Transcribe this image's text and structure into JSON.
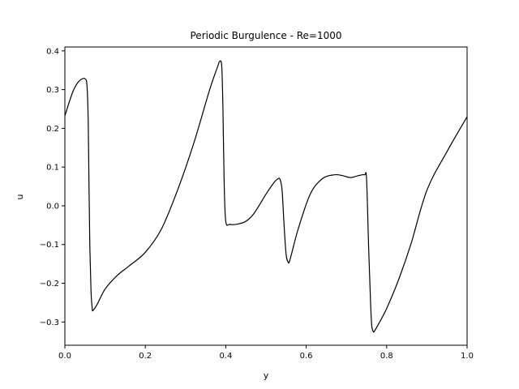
{
  "chart_data": {
    "type": "line",
    "title": "Periodic Burgulence - Re=1000",
    "xlabel": "y",
    "ylabel": "u",
    "xlim": [
      0.0,
      1.0
    ],
    "ylim": [
      -0.36,
      0.41
    ],
    "xticks": [
      0.0,
      0.2,
      0.4,
      0.6,
      0.8,
      1.0
    ],
    "xtick_labels": [
      "0.0",
      "0.2",
      "0.4",
      "0.6",
      "0.8",
      "1.0"
    ],
    "yticks": [
      -0.3,
      -0.2,
      -0.1,
      0.0,
      0.1,
      0.2,
      0.3,
      0.4
    ],
    "ytick_labels": [
      "−0.3",
      "−0.2",
      "−0.1",
      "0.0",
      "0.1",
      "0.2",
      "0.3",
      "0.4"
    ],
    "grid": false,
    "line_color": "#000000",
    "series": [
      {
        "x": [
          0.0,
          0.01,
          0.02,
          0.03,
          0.04,
          0.05,
          0.055,
          0.058,
          0.06,
          0.062,
          0.065,
          0.068,
          0.07,
          0.08,
          0.1,
          0.13,
          0.16,
          0.2,
          0.24,
          0.28,
          0.32,
          0.36,
          0.38,
          0.385,
          0.39,
          0.393,
          0.396,
          0.4,
          0.41,
          0.43,
          0.45,
          0.47,
          0.5,
          0.52,
          0.53,
          0.535,
          0.54,
          0.545,
          0.55,
          0.555,
          0.56,
          0.58,
          0.61,
          0.64,
          0.67,
          0.69,
          0.71,
          0.73,
          0.745,
          0.75,
          0.755,
          0.76,
          0.763,
          0.767,
          0.77,
          0.78,
          0.8,
          0.83,
          0.86,
          0.9,
          0.95,
          1.0
        ],
        "y": [
          0.232,
          0.265,
          0.295,
          0.315,
          0.326,
          0.328,
          0.31,
          0.22,
          0.05,
          -0.1,
          -0.22,
          -0.265,
          -0.27,
          -0.255,
          -0.215,
          -0.18,
          -0.155,
          -0.12,
          -0.06,
          0.04,
          0.16,
          0.3,
          0.36,
          0.373,
          0.36,
          0.25,
          0.06,
          -0.04,
          -0.048,
          -0.047,
          -0.04,
          -0.02,
          0.03,
          0.06,
          0.07,
          0.068,
          0.04,
          -0.05,
          -0.125,
          -0.145,
          -0.138,
          -0.06,
          0.03,
          0.07,
          0.08,
          0.078,
          0.073,
          0.078,
          0.08,
          0.07,
          -0.1,
          -0.25,
          -0.31,
          -0.325,
          -0.323,
          -0.305,
          -0.265,
          -0.19,
          -0.1,
          0.04,
          0.14,
          0.23
        ]
      }
    ]
  }
}
